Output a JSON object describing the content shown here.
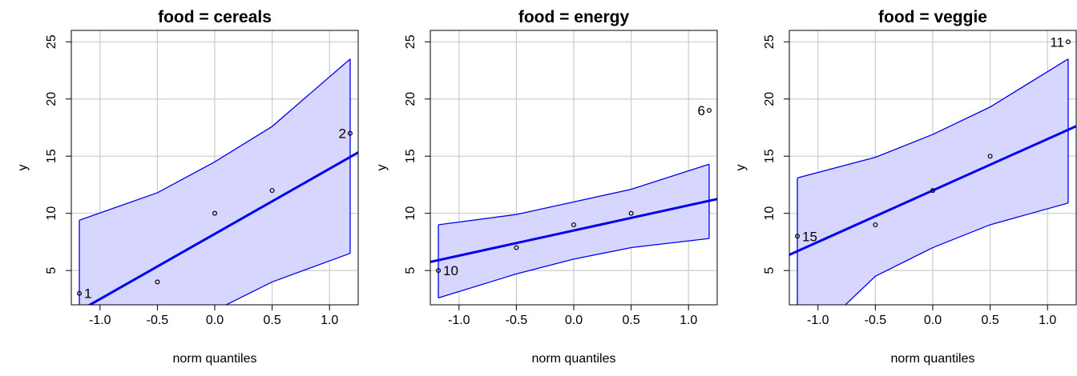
{
  "chart_data": [
    {
      "type": "scatter",
      "title": "food = cereals",
      "xlabel": "norm quantiles",
      "ylabel": "y",
      "xlim": [
        -1.25,
        1.25
      ],
      "ylim": [
        2,
        26
      ],
      "xticks": [
        -1.0,
        -0.5,
        0.0,
        0.5,
        1.0
      ],
      "xtick_labels": [
        "-1.0",
        "-0.5",
        "0.0",
        "0.5",
        "1.0"
      ],
      "yticks": [
        5,
        10,
        15,
        20,
        25
      ],
      "ytick_labels": [
        "5",
        "10",
        "15",
        "20",
        "25"
      ],
      "grid": true,
      "points": [
        {
          "x": -1.18,
          "y": 3
        },
        {
          "x": -0.5,
          "y": 4
        },
        {
          "x": 0.0,
          "y": 10
        },
        {
          "x": 0.5,
          "y": 12
        },
        {
          "x": 1.18,
          "y": 17
        }
      ],
      "point_labels": [
        {
          "text": "1",
          "x": -1.18,
          "y": 3,
          "side": "right"
        },
        {
          "text": "2",
          "x": 1.18,
          "y": 17,
          "side": "left"
        }
      ],
      "fit_line": {
        "intercept": 8.2,
        "slope": 5.7
      },
      "envelope": {
        "x": [
          -1.18,
          -0.5,
          0.0,
          0.5,
          1.18
        ],
        "lower": [
          -2.5,
          -0.3,
          1.5,
          4.0,
          6.5
        ],
        "upper": [
          9.4,
          11.8,
          14.5,
          17.6,
          23.5
        ]
      },
      "colors": {
        "line": "#0000ee",
        "band": "#d6d6ff",
        "grid": "#cccccc"
      }
    },
    {
      "type": "scatter",
      "title": "food = energy",
      "xlabel": "norm quantiles",
      "ylabel": "y",
      "xlim": [
        -1.25,
        1.25
      ],
      "ylim": [
        2,
        26
      ],
      "xticks": [
        -1.0,
        -0.5,
        0.0,
        0.5,
        1.0
      ],
      "xtick_labels": [
        "-1.0",
        "-0.5",
        "0.0",
        "0.5",
        "1.0"
      ],
      "yticks": [
        5,
        10,
        15,
        20,
        25
      ],
      "ytick_labels": [
        "5",
        "10",
        "15",
        "20",
        "25"
      ],
      "grid": true,
      "points": [
        {
          "x": -1.18,
          "y": 5
        },
        {
          "x": -0.5,
          "y": 7
        },
        {
          "x": 0.0,
          "y": 9
        },
        {
          "x": 0.5,
          "y": 10
        },
        {
          "x": 1.18,
          "y": 19
        }
      ],
      "point_labels": [
        {
          "text": "10",
          "x": -1.18,
          "y": 5,
          "side": "right"
        },
        {
          "text": "6",
          "x": 1.18,
          "y": 19,
          "side": "left"
        }
      ],
      "fit_line": {
        "intercept": 8.5,
        "slope": 2.2
      },
      "envelope": {
        "x": [
          -1.18,
          -0.5,
          0.0,
          0.5,
          1.18
        ],
        "lower": [
          2.6,
          4.7,
          6.0,
          7.0,
          7.8
        ],
        "upper": [
          9.0,
          9.9,
          11.0,
          12.1,
          14.3
        ]
      },
      "colors": {
        "line": "#0000ee",
        "band": "#d6d6ff",
        "grid": "#cccccc"
      }
    },
    {
      "type": "scatter",
      "title": "food = veggie",
      "xlabel": "norm quantiles",
      "ylabel": "y",
      "xlim": [
        -1.25,
        1.25
      ],
      "ylim": [
        2,
        26
      ],
      "xticks": [
        -1.0,
        -0.5,
        0.0,
        0.5,
        1.0
      ],
      "xtick_labels": [
        "-1.0",
        "-0.5",
        "0.0",
        "0.5",
        "1.0"
      ],
      "yticks": [
        5,
        10,
        15,
        20,
        25
      ],
      "ytick_labels": [
        "5",
        "10",
        "15",
        "20",
        "25"
      ],
      "grid": true,
      "points": [
        {
          "x": -1.18,
          "y": 8
        },
        {
          "x": -0.5,
          "y": 9
        },
        {
          "x": 0.0,
          "y": 12
        },
        {
          "x": 0.5,
          "y": 15
        },
        {
          "x": 1.18,
          "y": 25
        }
      ],
      "point_labels": [
        {
          "text": "15",
          "x": -1.18,
          "y": 8,
          "side": "right"
        },
        {
          "text": "11",
          "x": 1.18,
          "y": 25,
          "side": "left"
        }
      ],
      "fit_line": {
        "intercept": 12.0,
        "slope": 4.5
      },
      "envelope": {
        "x": [
          -1.18,
          -0.5,
          0.0,
          0.5,
          1.18
        ],
        "lower": [
          -2.0,
          4.5,
          7.0,
          9.0,
          10.9
        ],
        "upper": [
          13.1,
          14.9,
          16.9,
          19.3,
          23.5
        ]
      },
      "colors": {
        "line": "#0000ee",
        "band": "#d6d6ff",
        "grid": "#cccccc"
      }
    }
  ]
}
